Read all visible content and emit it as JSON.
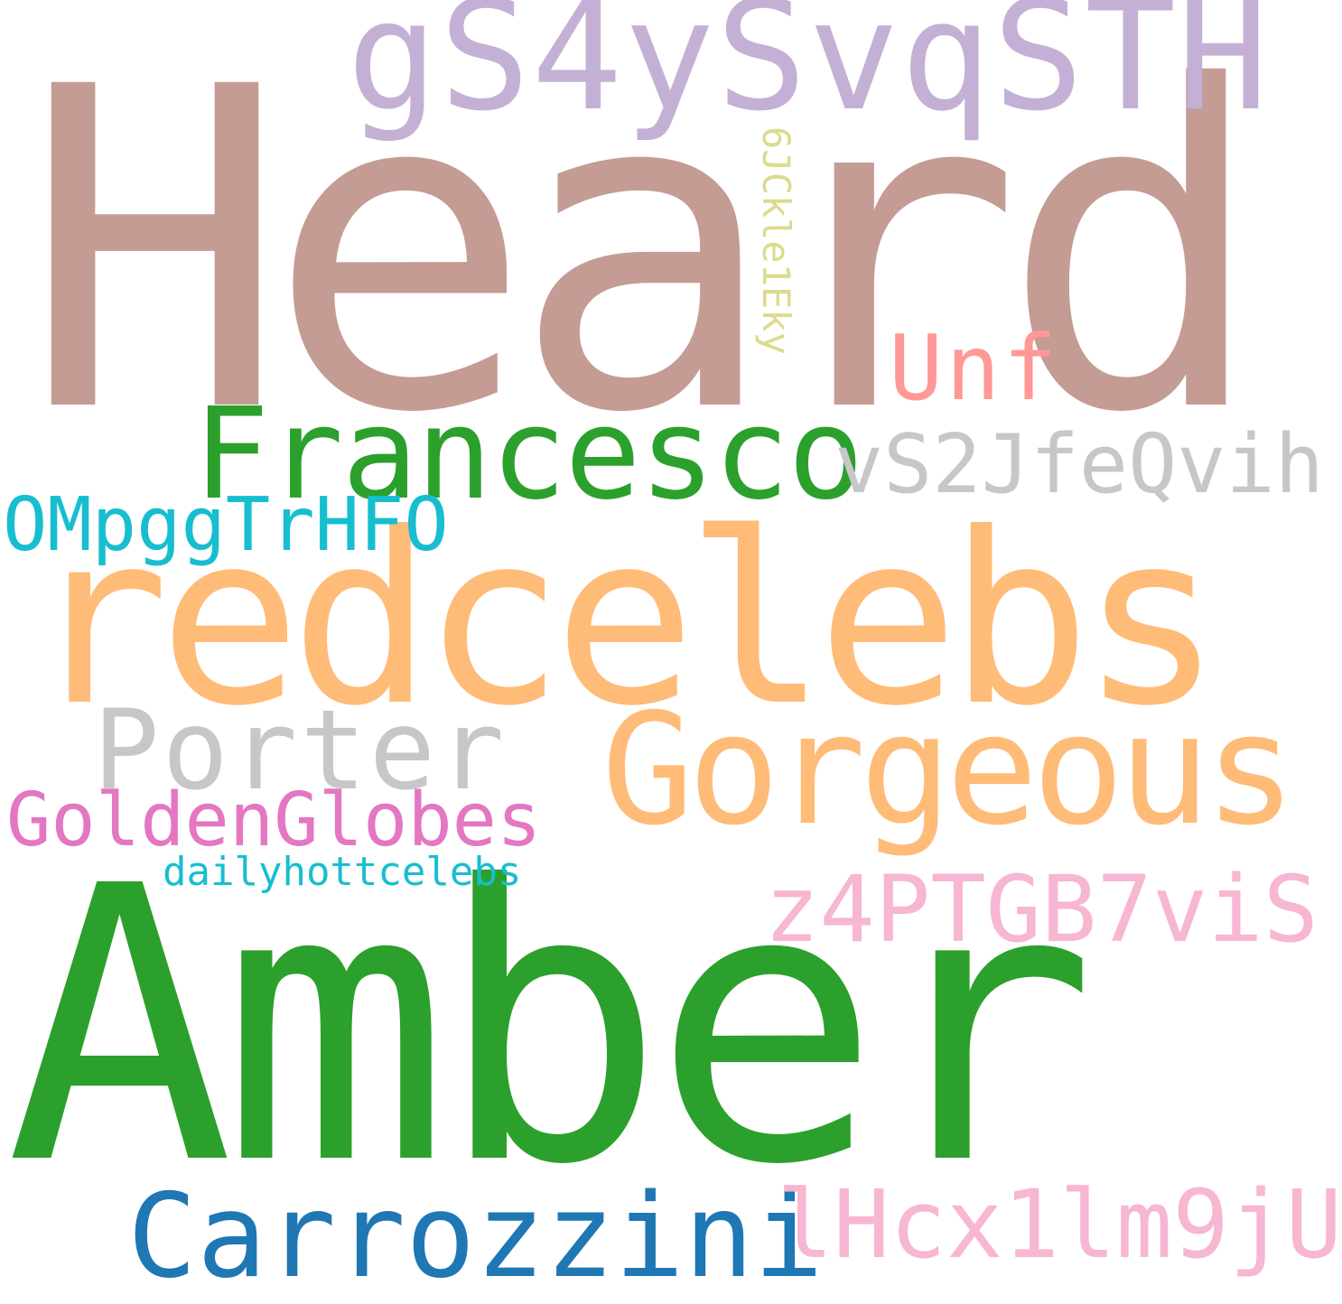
{
  "words": [
    {
      "text": "Heard",
      "color": "#c49c94"
    },
    {
      "text": "Amber",
      "color": "#2ca02c"
    },
    {
      "text": "redcelebs",
      "color": "#ffbb78"
    },
    {
      "text": "gS4ySvqSTH",
      "color": "#c5b0d5"
    },
    {
      "text": "Francesco",
      "color": "#2ca02c"
    },
    {
      "text": "Gorgeous",
      "color": "#ffbb78"
    },
    {
      "text": "Porter",
      "color": "#c7c7c7"
    },
    {
      "text": "Unf",
      "color": "#ff9896"
    },
    {
      "text": "vS2JfeQvih",
      "color": "#c7c7c7"
    },
    {
      "text": "OMpggTrHFO",
      "color": "#17becf"
    },
    {
      "text": "GoldenGlobes",
      "color": "#e377c2"
    },
    {
      "text": "dailyhottcelebs",
      "color": "#17becf"
    },
    {
      "text": "z4PTGB7viS",
      "color": "#f7b6d2"
    },
    {
      "text": "Carrozzini",
      "color": "#1f77b4"
    },
    {
      "text": "lHcx1lm9jU",
      "color": "#f7b6d2"
    },
    {
      "text": "6JCkle1Eky",
      "color": "#dbdb8d"
    }
  ]
}
